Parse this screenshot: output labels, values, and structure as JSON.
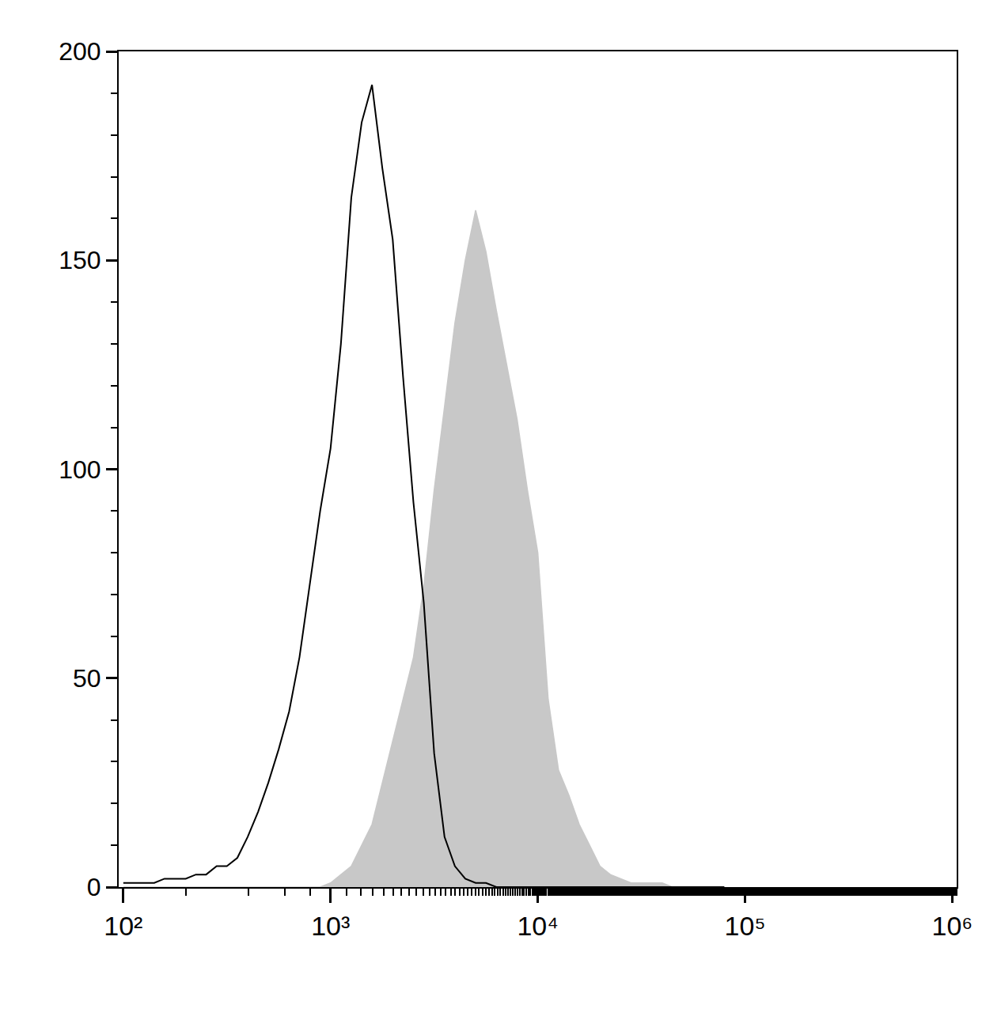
{
  "chart_data": {
    "type": "line",
    "log": "x",
    "grid": false,
    "x": [
      100,
      112,
      126,
      141,
      158,
      178,
      200,
      224,
      251,
      282,
      316,
      355,
      398,
      447,
      501,
      562,
      631,
      708,
      794,
      891,
      1000,
      1122,
      1259,
      1413,
      1585,
      1778,
      1995,
      2239,
      2512,
      2818,
      3162,
      3548,
      3981,
      4467,
      5012,
      5623,
      6310,
      7079,
      7943,
      8913,
      10000,
      11220,
      12589,
      14125,
      15849,
      17783,
      19953,
      22387,
      25119,
      28184,
      31623,
      35481,
      39811,
      44668,
      50119,
      56234,
      63096,
      70795,
      79433
    ],
    "series": [
      {
        "type": "area",
        "color": "#c8c8c8",
        "values": [
          0,
          0,
          0,
          0,
          0,
          0,
          0,
          0,
          0,
          0,
          0,
          0,
          0,
          0,
          0,
          0,
          0,
          0,
          0,
          0,
          1,
          3,
          5,
          10,
          15,
          25,
          35,
          45,
          55,
          72,
          95,
          115,
          135,
          150,
          162,
          152,
          138,
          125,
          112,
          95,
          80,
          45,
          28,
          22,
          15,
          10,
          5,
          3,
          2,
          1,
          1,
          1,
          1,
          0,
          0,
          0,
          0,
          0,
          0
        ]
      },
      {
        "type": "line",
        "color": "#000000",
        "values": [
          1,
          1,
          1,
          1,
          2,
          2,
          2,
          3,
          3,
          5,
          5,
          7,
          12,
          18,
          25,
          33,
          42,
          55,
          72,
          90,
          105,
          130,
          165,
          183,
          192,
          172,
          155,
          122,
          92,
          68,
          32,
          12,
          5,
          2,
          1,
          1,
          0,
          0,
          0,
          0,
          0,
          0,
          0,
          0,
          0,
          0,
          0,
          0,
          0,
          0,
          0,
          0,
          0,
          0,
          0,
          0,
          0,
          0,
          0
        ]
      }
    ],
    "xlim": [
      95,
      1050000
    ],
    "xticks": [
      {
        "value": 100,
        "label": "10²"
      },
      {
        "value": 1000,
        "label": "10³"
      },
      {
        "value": 10000,
        "label": "10⁴"
      },
      {
        "value": 100000,
        "label": "10⁵"
      },
      {
        "value": 1000000,
        "label": "10⁶"
      }
    ],
    "ylim": [
      0,
      200
    ],
    "yticks": [
      0,
      50,
      100,
      150,
      200
    ]
  }
}
